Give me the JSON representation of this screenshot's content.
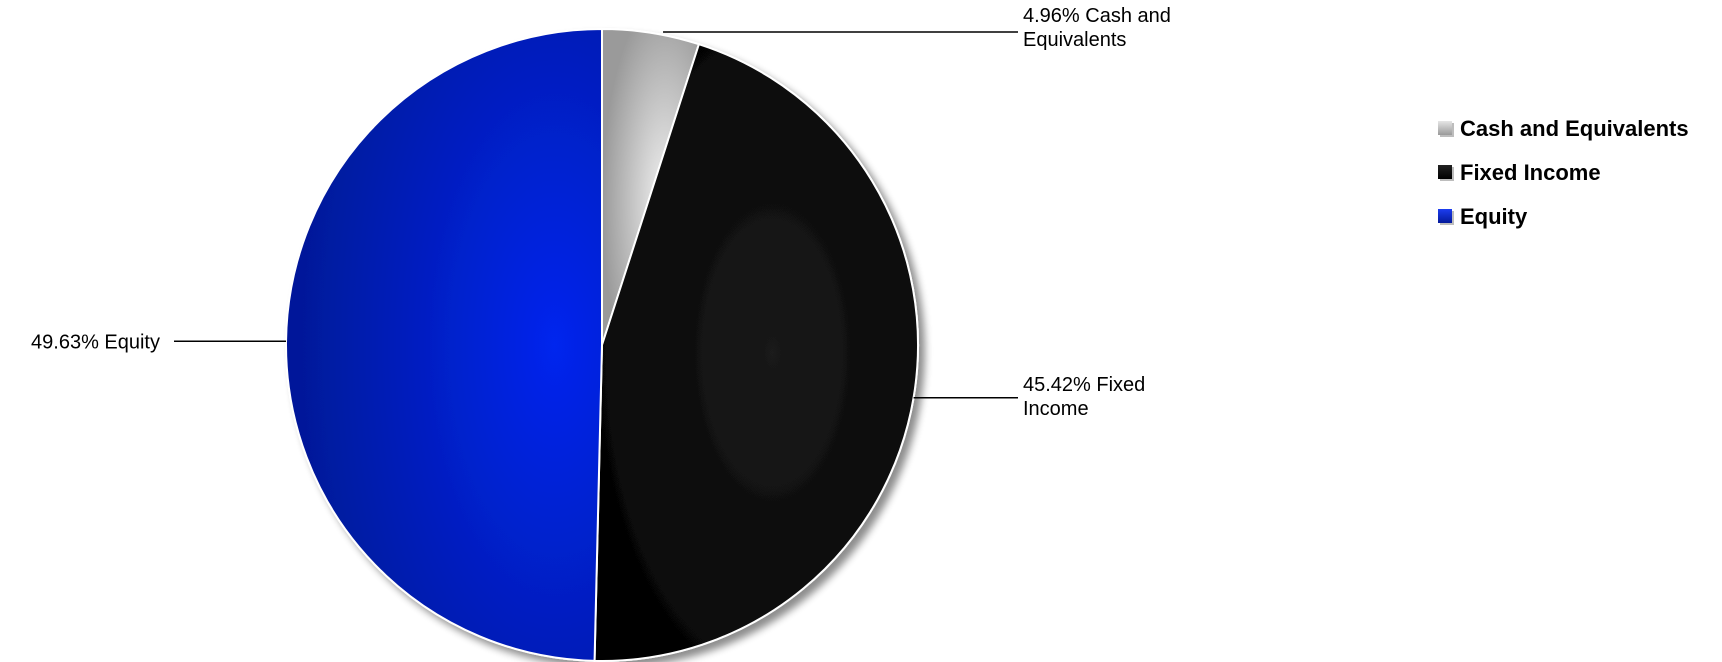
{
  "chart_data": {
    "type": "pie",
    "title": "",
    "categories": [
      "Cash and Equivalents",
      "Fixed Income",
      "Equity"
    ],
    "values": [
      4.96,
      45.42,
      49.63
    ],
    "unit": "%",
    "data_labels": [
      [
        "4.96% Cash and",
        "Equivalents"
      ],
      [
        "45.42% Fixed",
        "Income"
      ],
      [
        "49.63% Equity"
      ]
    ],
    "colors": [
      "#b9b9b9",
      "#000000",
      "#0a22c8"
    ],
    "start_angle": "12 o'clock",
    "direction": "clockwise",
    "legend": {
      "placement": "right",
      "entries": [
        "Cash and Equivalents",
        "Fixed Income",
        "Equity"
      ]
    }
  }
}
